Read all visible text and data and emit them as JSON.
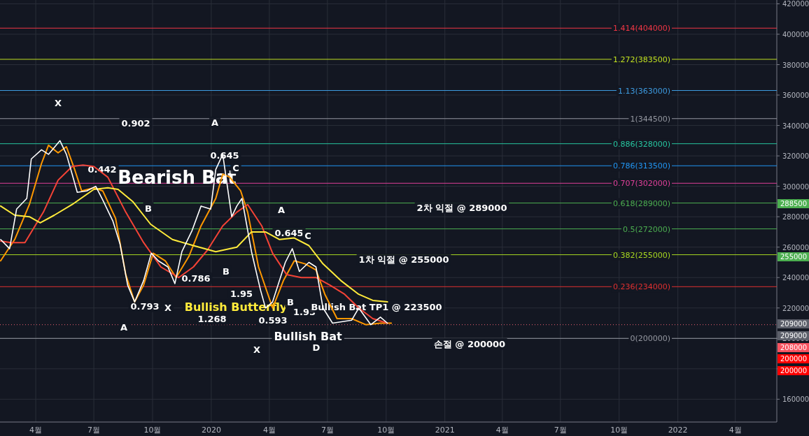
{
  "chart_data": {
    "type": "line",
    "xlim": [
      "2019-02-04",
      "2022-06-05"
    ],
    "xticks": [
      {
        "value": "2019-04-01",
        "label": "4월"
      },
      {
        "value": "2019-07-01",
        "label": "7월"
      },
      {
        "value": "2019-10-01",
        "label": "10월"
      },
      {
        "value": "2020-01-01",
        "label": "2020"
      },
      {
        "value": "2020-04-01",
        "label": "4월"
      },
      {
        "value": "2020-07-01",
        "label": "7월"
      },
      {
        "value": "2020-10-01",
        "label": "10월"
      },
      {
        "value": "2021-01-01",
        "label": "2021"
      },
      {
        "value": "2021-04-01",
        "label": "4월"
      },
      {
        "value": "2021-07-01",
        "label": "7월"
      },
      {
        "value": "2021-10-01",
        "label": "10월"
      },
      {
        "value": "2022-01-01",
        "label": "2022"
      },
      {
        "value": "2022-04-01",
        "label": "4월"
      }
    ],
    "ylim": [
      145000,
      422500
    ],
    "yticks": [
      160000,
      {
        "value": 180000,
        "label": null
      },
      200000,
      220000,
      240000,
      260000,
      280000,
      300000,
      320000,
      340000,
      360000,
      380000,
      400000,
      420000
    ],
    "grid": true,
    "series": [
      {
        "color": "#ff9800",
        "x": [
          "2019-02-05",
          "2019-02-27",
          "2019-03-22",
          "2019-04-10",
          "2019-04-21",
          "2019-05-06",
          "2019-05-19",
          "2019-06-01",
          "2019-06-12",
          "2019-07-01",
          "2019-07-15",
          "2019-08-04",
          "2019-08-20",
          "2019-09-03",
          "2019-09-17",
          "2019-10-02",
          "2019-10-21",
          "2019-11-07",
          "2019-11-27",
          "2019-12-16",
          "2020-01-08",
          "2020-01-19",
          "2020-01-30",
          "2020-02-16",
          "2020-02-27",
          "2020-03-15",
          "2020-04-06",
          "2020-04-23",
          "2020-05-10",
          "2020-05-27",
          "2020-06-13",
          "2020-06-27",
          "2020-07-16",
          "2020-08-08",
          "2020-08-30",
          "2020-09-22",
          "2020-10-09"
        ],
        "values": [
          251000,
          265000,
          288000,
          315000,
          327000,
          322000,
          326000,
          311000,
          297000,
          299000,
          297000,
          279000,
          242000,
          224000,
          235000,
          256000,
          251000,
          240000,
          254000,
          274000,
          292000,
          308000,
          306000,
          297000,
          283000,
          247000,
          220000,
          238000,
          251000,
          249000,
          245000,
          229000,
          213000,
          213000,
          209000,
          210000,
          210000
        ]
      },
      {
        "color": "#f44336",
        "x": [
          "2019-02-05",
          "2019-02-21",
          "2019-03-15",
          "2019-04-13",
          "2019-05-06",
          "2019-05-28",
          "2019-06-14",
          "2019-07-01",
          "2019-07-23",
          "2019-08-20",
          "2019-09-17",
          "2019-10-14",
          "2019-11-11",
          "2019-12-04",
          "2019-12-26",
          "2020-01-19",
          "2020-02-10",
          "2020-02-27",
          "2020-03-20",
          "2020-04-06",
          "2020-04-28",
          "2020-05-21",
          "2020-06-13",
          "2020-07-05",
          "2020-07-28",
          "2020-08-19",
          "2020-09-10",
          "2020-10-03"
        ],
        "values": [
          264000,
          263000,
          263000,
          283000,
          304000,
          313000,
          314000,
          313000,
          306000,
          283000,
          263000,
          247000,
          240000,
          247000,
          258000,
          274000,
          283000,
          288000,
          274000,
          256000,
          242000,
          240000,
          240000,
          235000,
          229000,
          220000,
          213000,
          210000
        ]
      },
      {
        "color": "#ffeb3b",
        "x": [
          "2019-02-05",
          "2019-02-27",
          "2019-03-22",
          "2019-04-08",
          "2019-04-30",
          "2019-05-28",
          "2019-07-01",
          "2019-07-23",
          "2019-08-08",
          "2019-08-31",
          "2019-09-28",
          "2019-11-01",
          "2019-12-04",
          "2020-01-08",
          "2020-02-10",
          "2020-03-04",
          "2020-03-26",
          "2020-04-17",
          "2020-05-10",
          "2020-06-02",
          "2020-06-24",
          "2020-07-22",
          "2020-08-19",
          "2020-09-10",
          "2020-10-03"
        ],
        "values": [
          287000,
          281000,
          280000,
          276000,
          281000,
          288000,
          298000,
          299000,
          298000,
          290000,
          275000,
          265000,
          261000,
          257000,
          260000,
          270000,
          270000,
          265000,
          266000,
          261000,
          249000,
          238000,
          229000,
          225000,
          224000
        ]
      },
      {
        "color": "#ffffff",
        "x": [
          "2019-02-05",
          "2019-02-19",
          "2019-03-02",
          "2019-03-18",
          "2019-03-25",
          "2019-04-10",
          "2019-04-21",
          "2019-05-09",
          "2019-05-19",
          "2019-05-28",
          "2019-06-05",
          "2019-06-20",
          "2019-07-04",
          "2019-07-15",
          "2019-07-31",
          "2019-08-11",
          "2019-08-23",
          "2019-09-03",
          "2019-09-17",
          "2019-09-29",
          "2019-10-10",
          "2019-10-25",
          "2019-11-05",
          "2019-11-16",
          "2019-12-02",
          "2019-12-16",
          "2019-12-31",
          "2020-01-08",
          "2020-01-19",
          "2020-02-02",
          "2020-02-10",
          "2020-02-18",
          "2020-03-04",
          "2020-03-18",
          "2020-03-26",
          "2020-04-06",
          "2020-04-26",
          "2020-05-07",
          "2020-05-18",
          "2020-06-02",
          "2020-06-13",
          "2020-06-24",
          "2020-07-09",
          "2020-08-08",
          "2020-08-19",
          "2020-09-07",
          "2020-09-22",
          "2020-10-03"
        ],
        "values": [
          265000,
          259000,
          285000,
          292000,
          318000,
          324000,
          321000,
          330000,
          321000,
          308000,
          296000,
          297000,
          300000,
          291000,
          277000,
          262000,
          235000,
          224000,
          238000,
          256000,
          251000,
          247000,
          236000,
          257000,
          271000,
          287000,
          285000,
          311000,
          321000,
          280000,
          287000,
          292000,
          257000,
          232000,
          220000,
          224000,
          250000,
          259000,
          244000,
          250000,
          247000,
          220000,
          210000,
          212000,
          220000,
          209000,
          214000,
          210000
        ]
      }
    ],
    "ref_lines": [
      {
        "axis": "y",
        "value": 404000,
        "label": "1.414(404000)",
        "color": "#f23645"
      },
      {
        "axis": "y",
        "value": 383500,
        "label": "1.272(383500)",
        "color": "#c0e020"
      },
      {
        "axis": "y",
        "value": 363000,
        "label": "1.13(363000)",
        "color": "#3d9be0"
      },
      {
        "axis": "y",
        "value": 344500,
        "label": "1(344500)",
        "color": "#9598a1"
      },
      {
        "axis": "y",
        "value": 328000,
        "label": "0.886(328000)",
        "color": "#26c6a0"
      },
      {
        "axis": "y",
        "value": 313500,
        "label": "0.786(313500)",
        "color": "#2196f3"
      },
      {
        "axis": "y",
        "value": 302000,
        "label": "0.707(302000)",
        "color": "#e0409a"
      },
      {
        "axis": "y",
        "value": 289000,
        "label": "0.618(289000)",
        "color": "#4caf50"
      },
      {
        "axis": "y",
        "value": 272000,
        "label": "0.5(272000)",
        "color": "#4caf50"
      },
      {
        "axis": "y",
        "value": 255000,
        "label": "0.382(255000)",
        "color": "#a8d820"
      },
      {
        "axis": "y",
        "value": 234000,
        "label": "0.236(234000)",
        "color": "#e03030"
      },
      {
        "axis": "y",
        "value": 200000,
        "label": "0(200000)",
        "color": "#9598a1"
      },
      {
        "axis": "y",
        "value": 209000,
        "color": "#f06070",
        "line_style": "dotted"
      }
    ],
    "annotations": [
      "X",
      "0.902",
      "0.442",
      "Bearish Bat",
      "B",
      "A",
      "0.793",
      "X",
      "0.786",
      "A",
      "0.645",
      "C",
      "B",
      "Bullish Butterfly",
      "1.268",
      "1.95",
      "0.593",
      "X",
      "A",
      "0.645",
      "C",
      "B",
      "1.95",
      "Bullish Bat",
      "D",
      "Bullish Bat TP1 @ 223500",
      "1차 익절 @ 255000",
      "2차 익절 @ 289000",
      "손절 @ 200000",
      "288500",
      "255000",
      "209000",
      "209000",
      "208000",
      "200000",
      "200000"
    ]
  }
}
